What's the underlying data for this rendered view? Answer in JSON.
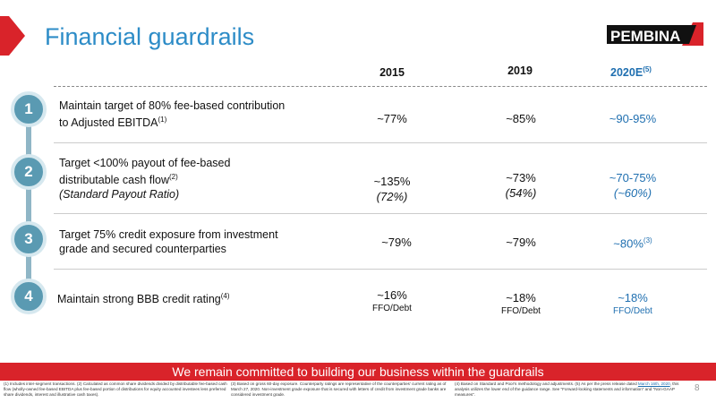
{
  "title": "Financial guardrails",
  "logo_text": "PEMBINA",
  "columns": [
    {
      "label": "2015",
      "sup": ""
    },
    {
      "label": "2019",
      "sup": ""
    },
    {
      "label": "2020E",
      "sup": "(5)"
    }
  ],
  "rows": [
    {
      "number": "1",
      "desc_line1": "Maintain target of 80% fee-based contribution",
      "desc_line2": "to Adjusted EBITDA",
      "desc_sup": "(1)",
      "v2015": "~77%",
      "v2019": "~85%",
      "v2020": "~90-95%"
    },
    {
      "number": "2",
      "desc_line1": "Target <100% payout of fee-based",
      "desc_line2": "distributable cash flow",
      "desc_sup": "(2)",
      "desc_line3": "(Standard Payout Ratio)",
      "v2015": "~135%",
      "v2015_sub": "(72%)",
      "v2019": "~73%",
      "v2019_sub": "(54%)",
      "v2020": "~70-75%",
      "v2020_sub": "(~60%)"
    },
    {
      "number": "3",
      "desc_line1": "Target 75% credit exposure from investment",
      "desc_line2": "grade and secured counterparties",
      "v2015": "~79%",
      "v2019": "~79%",
      "v2020": "~80%",
      "v2020_sup": "(3)"
    },
    {
      "number": "4",
      "desc_line1": "Maintain strong BBB credit rating",
      "desc_sup": "(4)",
      "v2015": "~16%",
      "v2015_sub": "FFO/Debt",
      "v2019": "~18%",
      "v2019_sub": "FFO/Debt",
      "v2020": "~18%",
      "v2020_sub": "FFO/Debt"
    }
  ],
  "banner": "We remain committed to building our business within the guardrails",
  "footnotes": {
    "col1": "(1) Includes inter-segment transactions. (2) Calculated as common share dividends divided by distributable fee-based cash flow (wholly-owned fee-based EBITDA plus fee-based portion of distributions for equity accounted investees less preferred share dividends, interest and illustrative cash taxes).",
    "col2": "(3) Based on gross 60-day exposure. Counterparty ratings are representative of the counterparties' current rating as of March 27, 2020. Non-investment grade exposure that is secured with letters of credit from investment grade banks are considered investment grade.",
    "col3_a": "(4) Based on Standard and Poor's methodology and adjustments. (5) As per the press release dated ",
    "col3_link": "March 16th, 2020",
    "col3_b": ", this analysis utilizes the lower end of the guidance range. See \"Forward-looking statements and information\" and \"Non-GAAP measures\"."
  },
  "page_number": "8",
  "colors": {
    "accent_red": "#d9232a",
    "title_blue": "#2d8cc7",
    "value_blue": "#1f6fb0",
    "circle": "#5a9ab2"
  }
}
